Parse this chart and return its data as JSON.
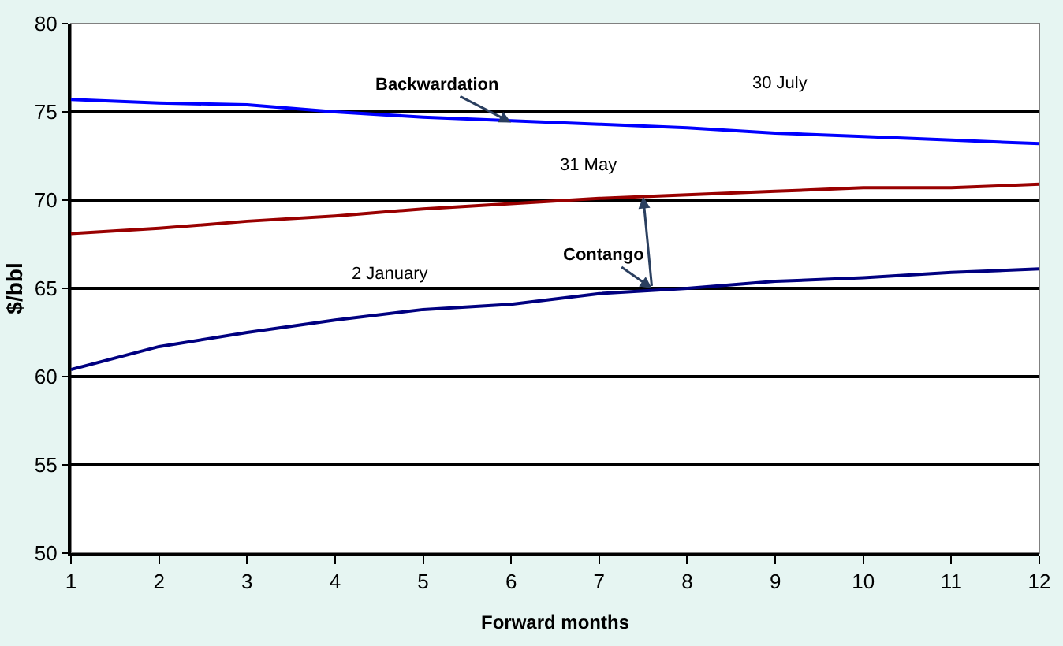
{
  "chart_data": {
    "type": "line",
    "xlabel": "Forward months",
    "ylabel": "$/bbl",
    "x": [
      1,
      2,
      3,
      4,
      5,
      6,
      7,
      8,
      9,
      10,
      11,
      12
    ],
    "series": [
      {
        "name": "30 July",
        "color": "#0000ff",
        "values": [
          75.7,
          75.5,
          75.4,
          75.0,
          74.7,
          74.5,
          74.3,
          74.1,
          73.8,
          73.6,
          73.4,
          73.2
        ]
      },
      {
        "name": "31 May",
        "color": "#990000",
        "values": [
          68.1,
          68.4,
          68.8,
          69.1,
          69.5,
          69.8,
          70.1,
          70.3,
          70.5,
          70.7,
          70.7,
          70.9
        ]
      },
      {
        "name": "2 January",
        "color": "#000080",
        "values": [
          60.4,
          61.7,
          62.5,
          63.2,
          63.8,
          64.1,
          64.7,
          65.0,
          65.4,
          65.6,
          65.9,
          66.1
        ]
      }
    ],
    "annotations": [
      {
        "text": "Backwardation",
        "x": 6.0,
        "y": 74.4
      },
      {
        "text": "Contango",
        "x": 7.6,
        "y": 65.0
      }
    ],
    "xlim": [
      1,
      12
    ],
    "xticks": [
      1,
      2,
      3,
      4,
      5,
      6,
      7,
      8,
      9,
      10,
      11,
      12
    ],
    "ylim": [
      50,
      80
    ],
    "yticks": [
      50,
      55,
      60,
      65,
      70,
      75,
      80
    ],
    "grid": "y",
    "legend": false,
    "marker": "none",
    "line_style": "solid"
  }
}
